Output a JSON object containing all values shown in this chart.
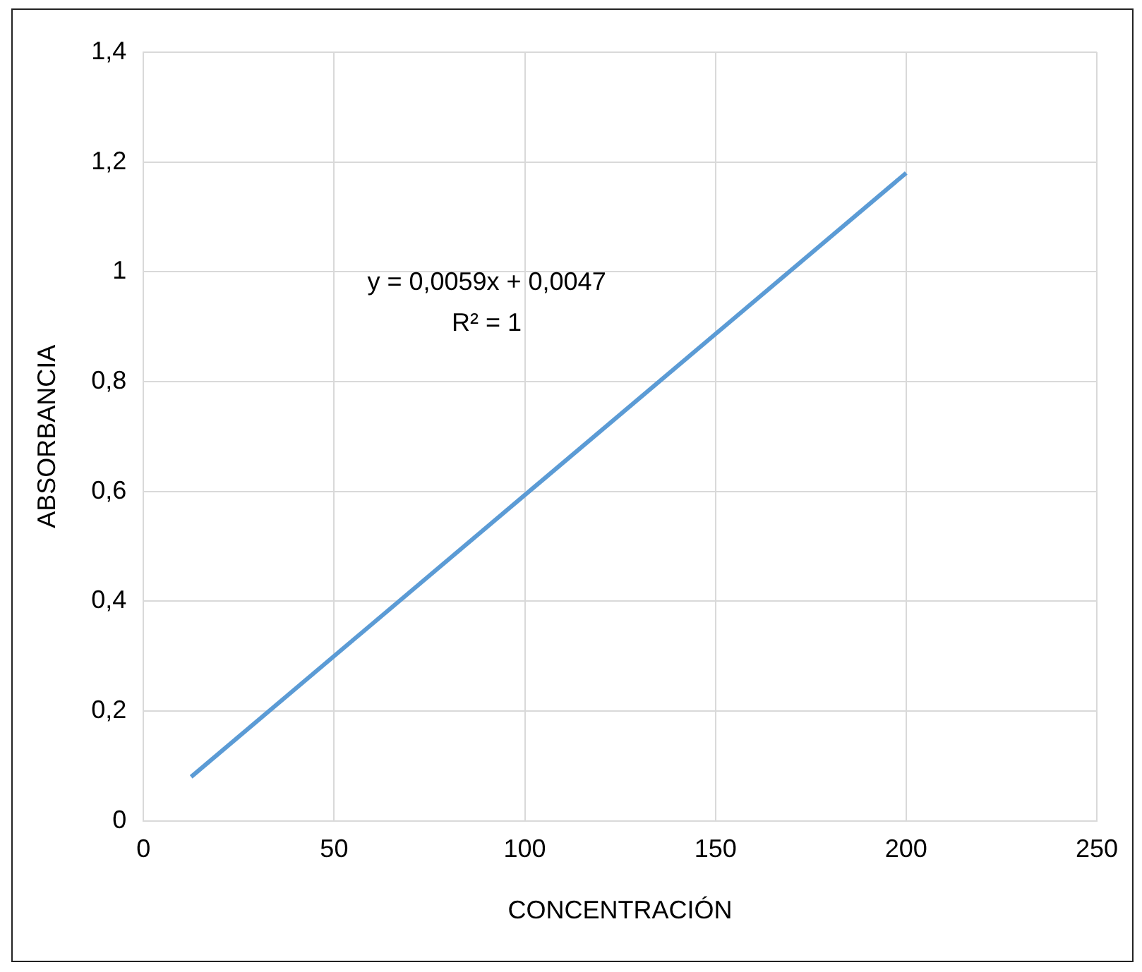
{
  "chart_data": {
    "type": "line",
    "xlabel": "CONCENTRACIÓN",
    "ylabel": "ABSORBANCIA",
    "x": [
      12.5,
      200
    ],
    "series": [
      {
        "color": "#5b9bd5",
        "values": [
          0.08,
          1.18
        ]
      }
    ],
    "xlim": [
      0,
      250
    ],
    "xticks": [
      0,
      50,
      100,
      150,
      200,
      250
    ],
    "ylim": [
      0,
      1.4
    ],
    "yticks": [
      0,
      {
        "value": 0.2,
        "label": "0,2"
      },
      {
        "value": 0.4,
        "label": "0,4"
      },
      {
        "value": 0.6,
        "label": "0,6"
      },
      {
        "value": 0.8,
        "label": "0,8"
      },
      1,
      {
        "value": 1.2,
        "label": "1,2"
      },
      {
        "value": 1.4,
        "label": "1,4"
      }
    ],
    "annotations": [
      "y = 0,0059x + 0,0047",
      "R² = 1"
    ],
    "grid": true,
    "legend": false,
    "marker": "none",
    "line_style": "solid"
  }
}
